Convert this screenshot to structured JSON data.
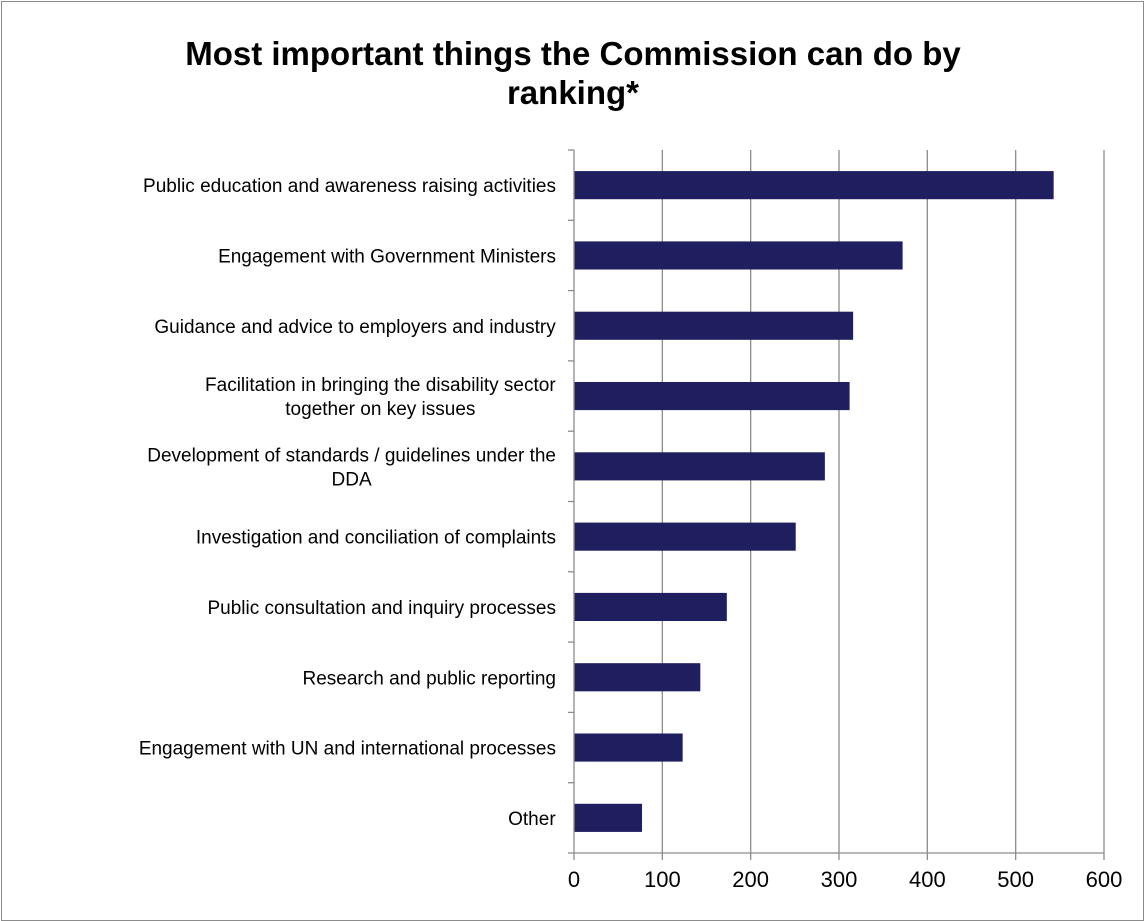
{
  "chart_data": {
    "type": "bar",
    "orientation": "horizontal",
    "title": [
      "Most important things the Commission can do by",
      "ranking*"
    ],
    "xlabel": "",
    "ylabel": "",
    "xlim": [
      0,
      600
    ],
    "x_ticks": [
      0,
      100,
      200,
      300,
      400,
      500,
      600
    ],
    "grid": "vertical",
    "legend": "none",
    "bar_color": "#1f1f5f",
    "categories": [
      [
        "Public education and awareness raising activities"
      ],
      [
        "Engagement with Government Ministers"
      ],
      [
        "Guidance and advice to employers and industry"
      ],
      [
        "Facilitation in bringing the disability sector",
        "together on key issues"
      ],
      [
        "Development of standards / guidelines under the",
        "DDA"
      ],
      [
        "Investigation and conciliation of complaints"
      ],
      [
        "Public consultation and inquiry processes"
      ],
      [
        "Research and public reporting"
      ],
      [
        "Engagement with UN and international processes"
      ],
      [
        "Other"
      ]
    ],
    "values": [
      543,
      372,
      316,
      312,
      284,
      251,
      173,
      143,
      123,
      77
    ]
  }
}
